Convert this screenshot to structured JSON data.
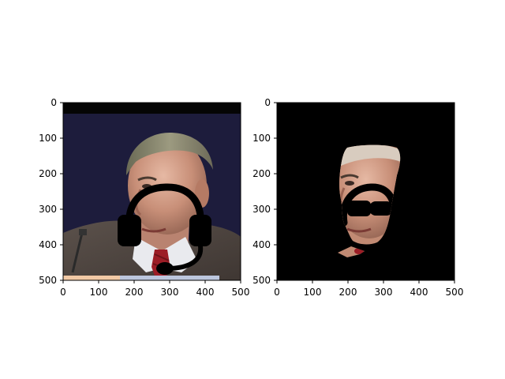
{
  "figure": {
    "panels": [
      {
        "content": "photo of a man with a drawn black headset overlay",
        "x_ticks": [
          "0",
          "100",
          "200",
          "300",
          "400",
          "500"
        ],
        "y_ticks": [
          "0",
          "100",
          "200",
          "300",
          "400",
          "500"
        ]
      },
      {
        "content": "segmentation mask: only the face region visible on black",
        "x_ticks": [
          "0",
          "100",
          "200",
          "300",
          "400",
          "500"
        ],
        "y_ticks": [
          "0",
          "100",
          "200",
          "300",
          "400",
          "500"
        ]
      }
    ]
  }
}
